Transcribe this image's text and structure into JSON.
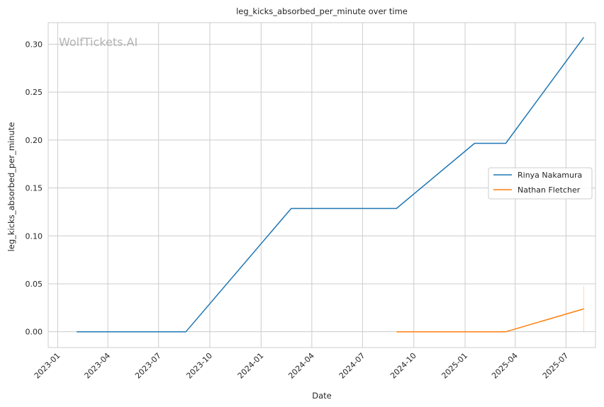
{
  "chart_data": {
    "type": "line",
    "title": "leg_kicks_absorbed_per_minute over time",
    "xlabel": "Date",
    "ylabel": "leg_kicks_absorbed_per_minute",
    "watermark": "WolfTickets.AI",
    "x_ticks": [
      "2023-01",
      "2023-04",
      "2023-07",
      "2023-10",
      "2024-01",
      "2024-04",
      "2024-07",
      "2024-10",
      "2025-01",
      "2025-04",
      "2025-07"
    ],
    "y_ticks": [
      "0.00",
      "0.05",
      "0.10",
      "0.15",
      "0.20",
      "0.25",
      "0.30"
    ],
    "xlim": [
      "2022-12-15",
      "2025-08-23"
    ],
    "ylim": [
      -0.0165,
      0.3225
    ],
    "grid": true,
    "legend_position": "center-right",
    "series": [
      {
        "name": "Rinya Nakamura",
        "color": "#1f77b4",
        "points": [
          {
            "x": "2023-02-04",
            "y": 0.0
          },
          {
            "x": "2023-08-19",
            "y": 0.0
          },
          {
            "x": "2024-02-24",
            "y": 0.1286
          },
          {
            "x": "2024-08-31",
            "y": 0.1286
          },
          {
            "x": "2025-01-18",
            "y": 0.1966
          },
          {
            "x": "2025-03-15",
            "y": 0.1966
          },
          {
            "x": "2025-08-02",
            "y": 0.3072
          }
        ]
      },
      {
        "name": "Nathan Fletcher",
        "color": "#ff7f0e",
        "points": [
          {
            "x": "2024-08-31",
            "y": 0.0
          },
          {
            "x": "2025-03-15",
            "y": 0.0
          },
          {
            "x": "2025-08-02",
            "y": 0.0238
          }
        ],
        "band": {
          "x": "2025-08-02",
          "low": 0.0,
          "high": 0.0476
        }
      }
    ]
  }
}
